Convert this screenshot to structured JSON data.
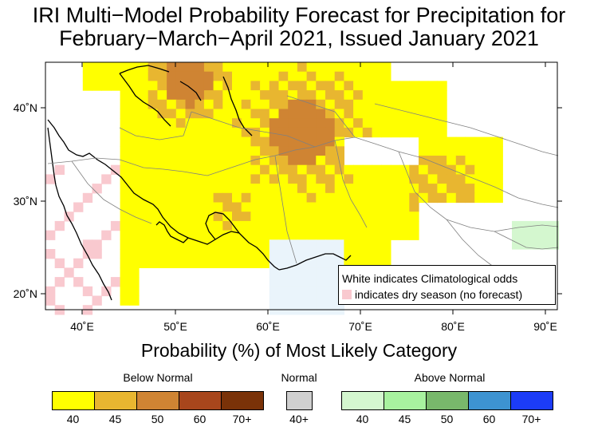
{
  "title_line1": "IRI Multi−Model Probability Forecast for Precipitation for",
  "title_line2": "February−March−April 2021, Issued January 2021",
  "lon_labels": [
    "40˚E",
    "50˚E",
    "60˚E",
    "70˚E",
    "80˚E",
    "90˚E"
  ],
  "lat_labels": [
    "40˚N",
    "30˚N",
    "20˚N"
  ],
  "map_legend": {
    "line1": "White indicates Climatological odds",
    "line2": "indicates dry season (no forecast)"
  },
  "subtitle": "Probability (%) of Most Likely Category",
  "below_normal": {
    "label": "Below Normal",
    "ticks": [
      "40",
      "45",
      "50",
      "60",
      "70+"
    ],
    "colors": [
      "#ffff00",
      "#e8b630",
      "#cf8433",
      "#a8461c",
      "#7a3208"
    ]
  },
  "normal": {
    "label": "Normal",
    "ticks": [
      "40+"
    ],
    "colors": [
      "#cfcfcf"
    ]
  },
  "above_normal": {
    "label": "Above Normal",
    "ticks": [
      "40",
      "45",
      "50",
      "60",
      "70+"
    ],
    "colors": [
      "#d4f7cf",
      "#a8f29f",
      "#78b86b",
      "#3d93d1",
      "#1c3cf7"
    ]
  },
  "map_colors": {
    "dry": "#f9c9cf",
    "normal_light": "#eaf4fb",
    "above_light": "#d4f7cf"
  }
}
